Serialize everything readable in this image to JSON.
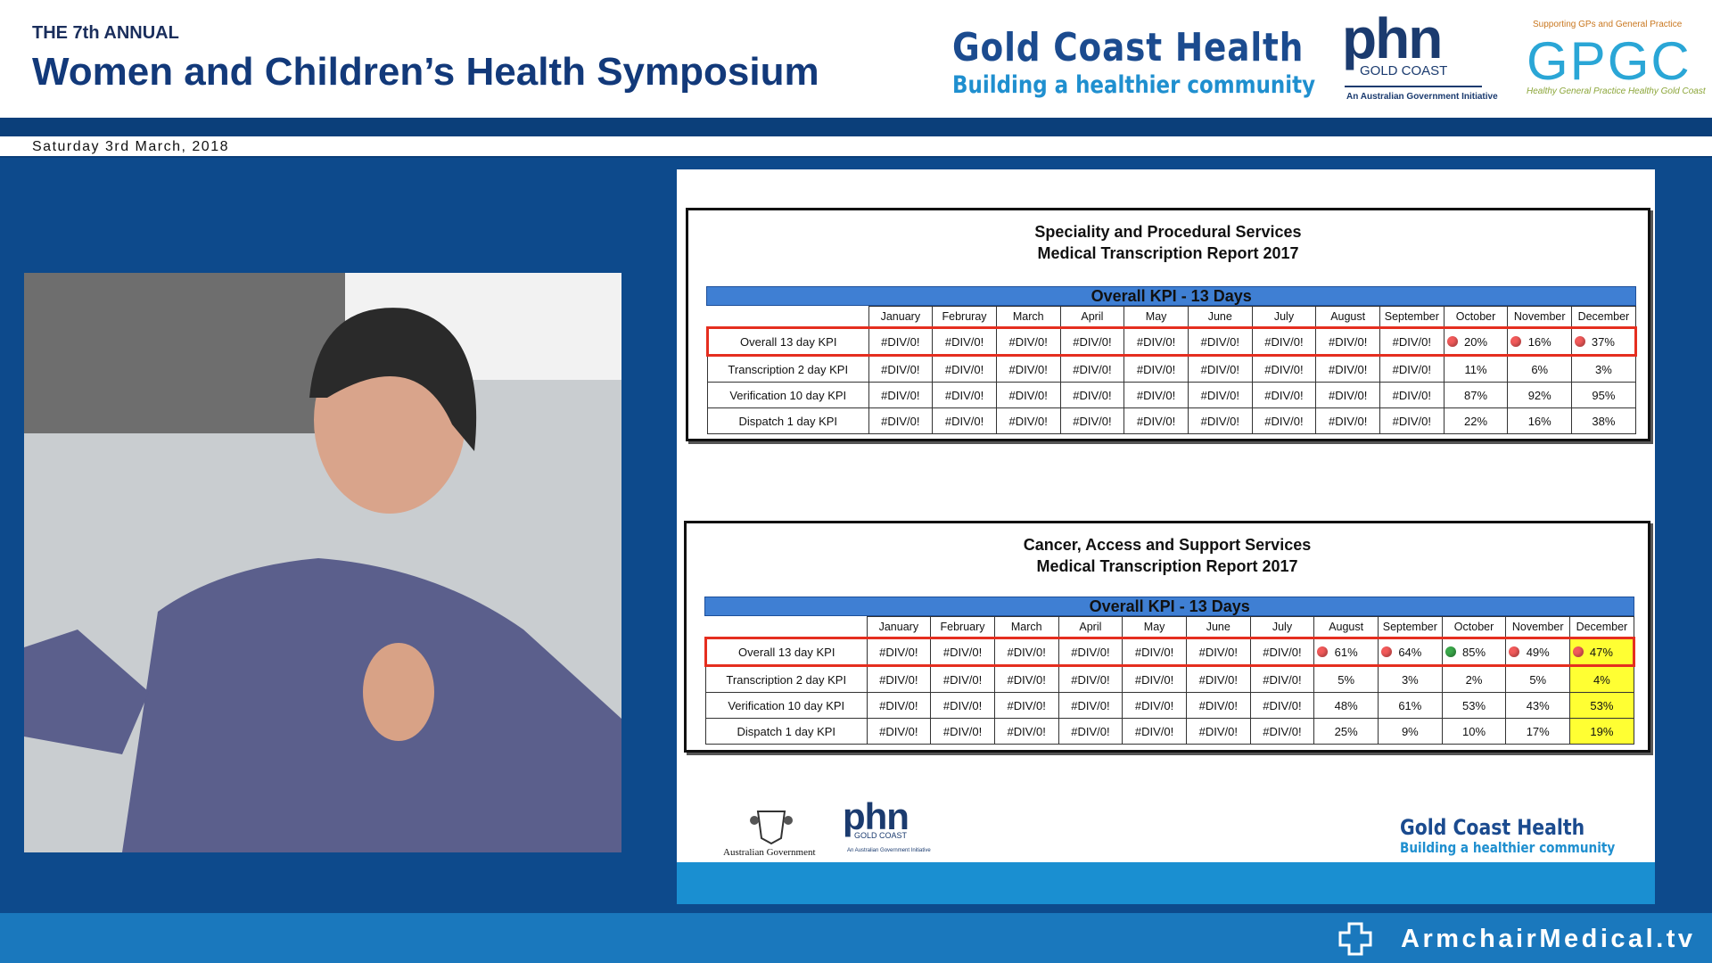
{
  "header": {
    "kicker": "THE 7th ANNUAL",
    "title": "Women and Children’s Health Symposium",
    "date": "Saturday 3rd March, 2018"
  },
  "logos": {
    "gch_name": "Gold Coast Health",
    "gch_tagline": "Building a healthier community",
    "phn": "phn",
    "phn_region": "GOLD COAST",
    "phn_note": "An Australian Government Initiative",
    "gpgc_top": "Supporting GPs and General Practice",
    "gpgc": "GPGC",
    "gpgc_bottom": "Healthy General Practice Healthy Gold Coast"
  },
  "slide": {
    "tables": [
      {
        "title": "Speciality and Procedural Services",
        "subtitle": "Medical Transcription Report 2017",
        "band": "Overall KPI - 13 Days",
        "columns": [
          "January",
          "Februray",
          "March",
          "April",
          "May",
          "June",
          "July",
          "August",
          "September",
          "October",
          "November",
          "December"
        ],
        "rows": [
          {
            "label": "Overall 13 day KPI",
            "cells": [
              "#DIV/0!",
              "#DIV/0!",
              "#DIV/0!",
              "#DIV/0!",
              "#DIV/0!",
              "#DIV/0!",
              "#DIV/0!",
              "#DIV/0!",
              "#DIV/0!",
              "20%",
              "16%",
              "37%"
            ],
            "dots": [
              null,
              null,
              null,
              null,
              null,
              null,
              null,
              null,
              null,
              "#f25a5a",
              "#f25a5a",
              "#f25a5a"
            ]
          },
          {
            "label": "Transcription 2 day KPI",
            "cells": [
              "#DIV/0!",
              "#DIV/0!",
              "#DIV/0!",
              "#DIV/0!",
              "#DIV/0!",
              "#DIV/0!",
              "#DIV/0!",
              "#DIV/0!",
              "#DIV/0!",
              "11%",
              "6%",
              "3%"
            ]
          },
          {
            "label": "Verification 10 day KPI",
            "cells": [
              "#DIV/0!",
              "#DIV/0!",
              "#DIV/0!",
              "#DIV/0!",
              "#DIV/0!",
              "#DIV/0!",
              "#DIV/0!",
              "#DIV/0!",
              "#DIV/0!",
              "87%",
              "92%",
              "95%"
            ]
          },
          {
            "label": "Dispatch 1 day KPI",
            "cells": [
              "#DIV/0!",
              "#DIV/0!",
              "#DIV/0!",
              "#DIV/0!",
              "#DIV/0!",
              "#DIV/0!",
              "#DIV/0!",
              "#DIV/0!",
              "#DIV/0!",
              "22%",
              "16%",
              "38%"
            ]
          }
        ]
      },
      {
        "title": "Cancer, Access and Support Services",
        "subtitle": "Medical Transcription Report 2017",
        "band": "Overall KPI - 13 Days",
        "columns": [
          "January",
          "February",
          "March",
          "April",
          "May",
          "June",
          "July",
          "August",
          "September",
          "October",
          "November",
          "December"
        ],
        "highlight_color": "#ffff33",
        "rows": [
          {
            "label": "Overall 13 day KPI",
            "cells": [
              "#DIV/0!",
              "#DIV/0!",
              "#DIV/0!",
              "#DIV/0!",
              "#DIV/0!",
              "#DIV/0!",
              "#DIV/0!",
              "61%",
              "64%",
              "85%",
              "49%",
              "47%"
            ],
            "dots": [
              null,
              null,
              null,
              null,
              null,
              null,
              null,
              "#f25a5a",
              "#f25a5a",
              "#3aa84a",
              "#f25a5a",
              "#f25a5a"
            ]
          },
          {
            "label": "Transcription 2 day KPI",
            "cells": [
              "#DIV/0!",
              "#DIV/0!",
              "#DIV/0!",
              "#DIV/0!",
              "#DIV/0!",
              "#DIV/0!",
              "#DIV/0!",
              "5%",
              "3%",
              "2%",
              "5%",
              "4%"
            ]
          },
          {
            "label": "Verification 10 day KPI",
            "cells": [
              "#DIV/0!",
              "#DIV/0!",
              "#DIV/0!",
              "#DIV/0!",
              "#DIV/0!",
              "#DIV/0!",
              "#DIV/0!",
              "48%",
              "61%",
              "53%",
              "43%",
              "53%"
            ]
          },
          {
            "label": "Dispatch 1 day KPI",
            "cells": [
              "#DIV/0!",
              "#DIV/0!",
              "#DIV/0!",
              "#DIV/0!",
              "#DIV/0!",
              "#DIV/0!",
              "#DIV/0!",
              "25%",
              "9%",
              "10%",
              "17%",
              "19%"
            ]
          }
        ]
      }
    ],
    "footer": {
      "aus_gov": "Australian Government",
      "phn": "phn",
      "phn_region": "GOLD COAST",
      "phn_note": "An Australian Government Initiative",
      "gch_name": "Gold Coast Health",
      "gch_tagline": "Building a healthier community"
    }
  },
  "footer": {
    "brand": "ArmchairMedical.tv"
  }
}
